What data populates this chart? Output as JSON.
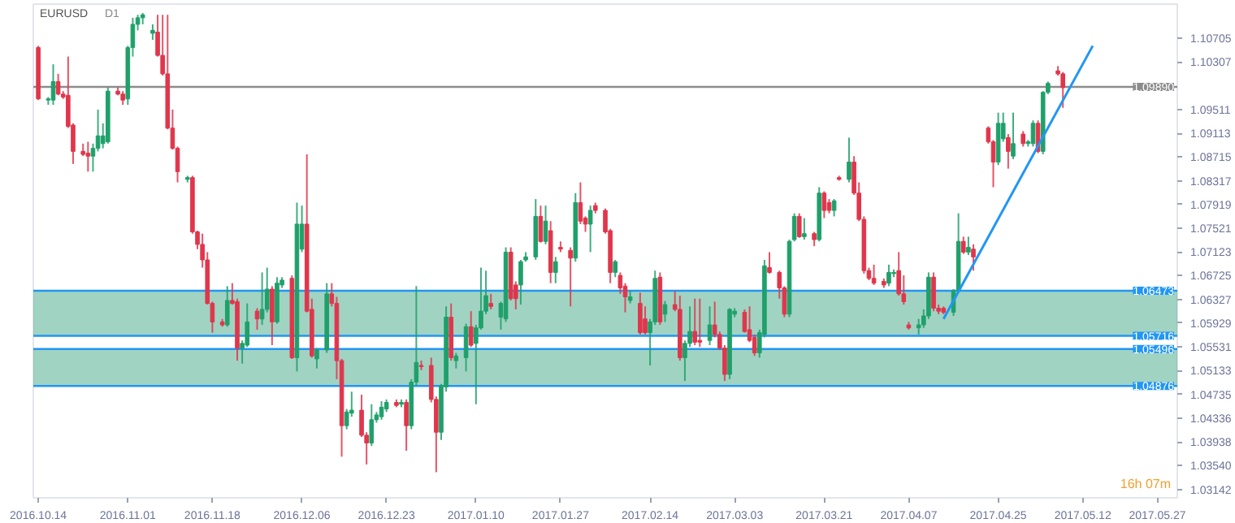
{
  "chart_data": {
    "type": "candlestick",
    "title": "EURUSD",
    "subtitle": "D1",
    "annotations": [
      "16h 07m"
    ],
    "x": [
      "2016-10-14",
      "2016-10-16",
      "2016-10-17",
      "2016-10-18",
      "2016-10-19",
      "2016-10-20",
      "2016-10-21",
      "2016-10-23",
      "2016-10-24",
      "2016-10-25",
      "2016-10-26",
      "2016-10-27",
      "2016-10-28",
      "2016-10-30",
      "2016-10-31",
      "2016-11-01",
      "2016-11-02",
      "2016-11-03",
      "2016-11-04",
      "2016-11-06",
      "2016-11-07",
      "2016-11-08",
      "2016-11-09",
      "2016-11-10",
      "2016-11-11",
      "2016-11-13",
      "2016-11-14",
      "2016-11-15",
      "2016-11-16",
      "2016-11-17",
      "2016-11-18",
      "2016-11-20",
      "2016-11-21",
      "2016-11-22",
      "2016-11-23",
      "2016-11-24",
      "2016-11-25",
      "2016-11-27",
      "2016-11-28",
      "2016-11-29",
      "2016-11-30",
      "2016-12-01",
      "2016-12-02",
      "2016-12-04",
      "2016-12-05",
      "2016-12-06",
      "2016-12-07",
      "2016-12-08",
      "2016-12-09",
      "2016-12-11",
      "2016-12-12",
      "2016-12-13",
      "2016-12-14",
      "2016-12-15",
      "2016-12-16",
      "2016-12-18",
      "2016-12-19",
      "2016-12-20",
      "2016-12-21",
      "2016-12-22",
      "2016-12-23",
      "2016-12-25",
      "2016-12-26",
      "2016-12-27",
      "2016-12-28",
      "2016-12-29",
      "2016-12-30",
      "2017-01-01",
      "2017-01-02",
      "2017-01-03",
      "2017-01-04",
      "2017-01-05",
      "2017-01-06",
      "2017-01-08",
      "2017-01-09",
      "2017-01-10",
      "2017-01-11",
      "2017-01-12",
      "2017-01-13",
      "2017-01-15",
      "2017-01-16",
      "2017-01-17",
      "2017-01-18",
      "2017-01-19",
      "2017-01-20",
      "2017-01-22",
      "2017-01-23",
      "2017-01-24",
      "2017-01-25",
      "2017-01-26",
      "2017-01-27",
      "2017-01-29",
      "2017-01-30",
      "2017-01-31",
      "2017-02-01",
      "2017-02-02",
      "2017-02-03",
      "2017-02-05",
      "2017-02-06",
      "2017-02-07",
      "2017-02-08",
      "2017-02-09",
      "2017-02-10",
      "2017-02-12",
      "2017-02-13",
      "2017-02-14",
      "2017-02-15",
      "2017-02-16",
      "2017-02-17",
      "2017-02-19",
      "2017-02-20",
      "2017-02-21",
      "2017-02-22",
      "2017-02-23",
      "2017-02-24",
      "2017-02-26",
      "2017-02-27",
      "2017-02-28",
      "2017-03-01",
      "2017-03-02",
      "2017-03-03",
      "2017-03-05",
      "2017-03-06",
      "2017-03-07",
      "2017-03-08",
      "2017-03-09",
      "2017-03-10",
      "2017-03-12",
      "2017-03-13",
      "2017-03-14",
      "2017-03-15",
      "2017-03-16",
      "2017-03-17",
      "2017-03-19",
      "2017-03-20",
      "2017-03-21",
      "2017-03-22",
      "2017-03-23",
      "2017-03-24",
      "2017-03-26",
      "2017-03-27",
      "2017-03-28",
      "2017-03-29",
      "2017-03-30",
      "2017-03-31",
      "2017-04-02",
      "2017-04-03",
      "2017-04-04",
      "2017-04-05",
      "2017-04-06",
      "2017-04-07",
      "2017-04-09",
      "2017-04-10",
      "2017-04-11",
      "2017-04-12",
      "2017-04-13",
      "2017-04-14",
      "2017-04-16",
      "2017-04-17",
      "2017-04-18",
      "2017-04-19",
      "2017-04-20",
      "2017-04-23",
      "2017-04-24",
      "2017-04-25",
      "2017-04-26",
      "2017-04-27",
      "2017-04-28",
      "2017-04-30",
      "2017-05-01",
      "2017-05-02",
      "2017-05-03",
      "2017-05-04",
      "2017-05-05",
      "2017-05-07",
      "2017-05-08"
    ],
    "ohlc": [
      [
        1.1055,
        1.1058,
        1.0967,
        1.0969
      ],
      [
        1.0967,
        1.0972,
        1.0959,
        1.0969
      ],
      [
        1.0967,
        1.1027,
        1.0959,
        1.0998
      ],
      [
        1.0998,
        1.1011,
        1.0975,
        1.0977
      ],
      [
        1.0977,
        1.0982,
        1.0969,
        1.0972
      ],
      [
        1.0975,
        1.104,
        1.092,
        1.0923
      ],
      [
        1.0925,
        1.0928,
        1.086,
        1.0881
      ],
      [
        1.0881,
        1.0894,
        1.0873,
        1.0876
      ],
      [
        1.0878,
        1.0897,
        1.0847,
        1.0873
      ],
      [
        1.0873,
        1.0894,
        1.0847,
        1.0886
      ],
      [
        1.0886,
        1.0951,
        1.0881,
        1.0907
      ],
      [
        1.0894,
        1.0928,
        1.0886,
        1.0907
      ],
      [
        1.0897,
        1.0988,
        1.0894,
        1.0982
      ],
      [
        1.0982,
        1.0988,
        1.0975,
        1.0977
      ],
      [
        1.0977,
        1.0982,
        1.0959,
        1.0967
      ],
      [
        1.0969,
        1.1058,
        1.0959,
        1.1055
      ],
      [
        1.1055,
        1.1105,
        1.104,
        1.1094
      ],
      [
        1.1094,
        1.111,
        1.1084,
        1.1105
      ],
      [
        1.1105,
        1.1113,
        1.1094,
        1.111
      ],
      [
        1.1079,
        1.1094,
        1.1068,
        1.1084
      ],
      [
        1.1081,
        1.111,
        1.104,
        1.1042
      ],
      [
        1.1042,
        1.111,
        1.1008,
        1.1011
      ],
      [
        1.1011,
        1.111,
        1.0918,
        1.092
      ],
      [
        1.092,
        1.0951,
        1.0884,
        1.0886
      ],
      [
        1.0886,
        1.0889,
        1.0829,
        1.0847
      ],
      [
        1.0834,
        1.084,
        1.0829,
        1.0837
      ],
      [
        1.0837,
        1.084,
        1.0743,
        1.0746
      ],
      [
        1.0746,
        1.0748,
        1.0717,
        1.0725
      ],
      [
        1.0725,
        1.0743,
        1.0686,
        1.0699
      ],
      [
        1.0699,
        1.0712,
        1.0624,
        1.0626
      ],
      [
        1.0626,
        1.0629,
        1.0577,
        1.0595
      ],
      [
        1.0595,
        1.06,
        1.0587,
        1.059
      ],
      [
        1.059,
        1.0655,
        1.0587,
        1.0631
      ],
      [
        1.0631,
        1.066,
        1.0624,
        1.0626
      ],
      [
        1.0629,
        1.0634,
        1.053,
        1.0551
      ],
      [
        1.0551,
        1.0564,
        1.0525,
        1.0559
      ],
      [
        1.0556,
        1.0626,
        1.0553,
        1.0595
      ],
      [
        1.0613,
        1.0618,
        1.0582,
        1.06
      ],
      [
        1.06,
        1.0678,
        1.059,
        1.0616
      ],
      [
        1.0616,
        1.0686,
        1.0611,
        1.065
      ],
      [
        1.065,
        1.0655,
        1.0556,
        1.0595
      ],
      [
        1.0595,
        1.067,
        1.0592,
        1.066
      ],
      [
        1.0657,
        1.067,
        1.0652,
        1.0665
      ],
      [
        1.0668,
        1.0673,
        1.0533,
        1.0535
      ],
      [
        1.0535,
        1.0795,
        1.0512,
        1.0759
      ],
      [
        1.0717,
        1.079,
        1.0712,
        1.0759
      ],
      [
        1.0759,
        1.0876,
        1.0611,
        1.0613
      ],
      [
        1.0616,
        1.0634,
        1.0535,
        1.0538
      ],
      [
        1.0533,
        1.0551,
        1.0517,
        1.0548
      ],
      [
        1.0548,
        1.066,
        1.0543,
        1.0642
      ],
      [
        1.0642,
        1.066,
        1.0621,
        1.0626
      ],
      [
        1.0626,
        1.0637,
        1.0499,
        1.053
      ],
      [
        1.053,
        1.0533,
        1.0369,
        1.0421
      ],
      [
        1.0421,
        1.0449,
        1.0415,
        1.0444
      ],
      [
        1.0442,
        1.0478,
        1.0436,
        1.0447
      ],
      [
        1.0447,
        1.0473,
        1.0402,
        1.0405
      ],
      [
        1.0405,
        1.041,
        1.0356,
        1.0392
      ],
      [
        1.0392,
        1.0457,
        1.0387,
        1.0431
      ],
      [
        1.0431,
        1.0444,
        1.0426,
        1.0439
      ],
      [
        1.0436,
        1.0462,
        1.0431,
        1.0452
      ],
      [
        1.0449,
        1.0465,
        1.0444,
        1.046
      ],
      [
        1.046,
        1.0465,
        1.0452,
        1.0455
      ],
      [
        1.0457,
        1.0465,
        1.0452,
        1.046
      ],
      [
        1.046,
        1.0465,
        1.0379,
        1.0421
      ],
      [
        1.0421,
        1.0499,
        1.0415,
        1.0494
      ],
      [
        1.0494,
        1.0655,
        1.0488,
        1.0527
      ],
      [
        1.0522,
        1.053,
        1.0514,
        1.052
      ],
      [
        1.0522,
        1.0535,
        1.046,
        1.0465
      ],
      [
        1.0465,
        1.047,
        1.0343,
        1.041
      ],
      [
        1.041,
        1.0491,
        1.0397,
        1.0488
      ],
      [
        1.0486,
        1.0621,
        1.0478,
        1.0603
      ],
      [
        1.0603,
        1.0626,
        1.053,
        1.0535
      ],
      [
        1.053,
        1.0543,
        1.0517,
        1.0538
      ],
      [
        1.0535,
        1.0592,
        1.0512,
        1.0587
      ],
      [
        1.0587,
        1.0613,
        1.0553,
        1.0556
      ],
      [
        1.0559,
        1.059,
        1.0457,
        1.0585
      ],
      [
        1.0585,
        1.0686,
        1.0582,
        1.0613
      ],
      [
        1.0613,
        1.0681,
        1.0608,
        1.0639
      ],
      [
        1.0626,
        1.0642,
        1.0616,
        1.0621
      ],
      [
        1.0603,
        1.0629,
        1.0582,
        1.0626
      ],
      [
        1.06,
        1.072,
        1.0595,
        1.0712
      ],
      [
        1.0712,
        1.072,
        1.0631,
        1.0634
      ],
      [
        1.0657,
        1.0663,
        1.0616,
        1.0634
      ],
      [
        1.0657,
        1.0699,
        1.0624,
        1.0696
      ],
      [
        1.0699,
        1.0712,
        1.0696,
        1.0704
      ],
      [
        1.0704,
        1.0801,
        1.0699,
        1.0772
      ],
      [
        1.0772,
        1.079,
        1.0728,
        1.073
      ],
      [
        1.073,
        1.079,
        1.0725,
        1.0764
      ],
      [
        1.0748,
        1.0764,
        1.066,
        1.0678
      ],
      [
        1.0678,
        1.0704,
        1.066,
        1.0696
      ],
      [
        1.072,
        1.073,
        1.0712,
        1.0717
      ],
      [
        1.0715,
        1.072,
        1.0621,
        1.0702
      ],
      [
        1.0702,
        1.0811,
        1.0696,
        1.0795
      ],
      [
        1.0795,
        1.0829,
        1.0759,
        1.0764
      ],
      [
        1.0769,
        1.0772,
        1.0746,
        1.0759
      ],
      [
        1.0759,
        1.079,
        1.0712,
        1.0782
      ],
      [
        1.079,
        1.0795,
        1.0777,
        1.0782
      ],
      [
        1.0782,
        1.0785,
        1.0743,
        1.0746
      ],
      [
        1.0748,
        1.0751,
        1.066,
        1.0678
      ],
      [
        1.0678,
        1.0699,
        1.067,
        1.0696
      ],
      [
        1.0673,
        1.0678,
        1.0642,
        1.0652
      ],
      [
        1.0655,
        1.066,
        1.0611,
        1.0637
      ],
      [
        1.0631,
        1.0647,
        1.0626,
        1.0637
      ],
      [
        1.0626,
        1.0644,
        1.0574,
        1.0577
      ],
      [
        1.06,
        1.0621,
        1.0574,
        1.0577
      ],
      [
        1.0577,
        1.06,
        1.0522,
        1.0595
      ],
      [
        1.0595,
        1.0681,
        1.059,
        1.0668
      ],
      [
        1.067,
        1.0678,
        1.059,
        1.0595
      ],
      [
        1.0608,
        1.063,
        1.0595,
        1.0624
      ],
      [
        1.0624,
        1.0647,
        1.0613,
        1.0616
      ],
      [
        1.0616,
        1.0639,
        1.053,
        1.0535
      ],
      [
        1.0535,
        1.0564,
        1.0496,
        1.0559
      ],
      [
        1.0559,
        1.0621,
        1.0553,
        1.0579
      ],
      [
        1.0579,
        1.0634,
        1.0556,
        1.0561
      ],
      [
        1.0564,
        1.0634,
        1.0553,
        1.0561
      ],
      [
        1.0564,
        1.0621,
        1.0556,
        1.059
      ],
      [
        1.059,
        1.0629,
        1.0569,
        1.0574
      ],
      [
        1.0574,
        1.0579,
        1.0548,
        1.0551
      ],
      [
        1.0551,
        1.0556,
        1.0496,
        1.0507
      ],
      [
        1.0507,
        1.0618,
        1.0499,
        1.0616
      ],
      [
        1.0608,
        1.0618,
        1.0603,
        1.0613
      ],
      [
        1.0611,
        1.0616,
        1.0577,
        1.0579
      ],
      [
        1.0582,
        1.0621,
        1.0561,
        1.0564
      ],
      [
        1.0569,
        1.0574,
        1.0538,
        1.0543
      ],
      [
        1.0543,
        1.0582,
        1.0535,
        1.0577
      ],
      [
        1.0574,
        1.0699,
        1.0569,
        1.0689
      ],
      [
        1.0686,
        1.0712,
        1.0676,
        1.0678
      ],
      [
        1.0678,
        1.0681,
        1.0634,
        1.0652
      ],
      [
        1.0652,
        1.0655,
        1.0603,
        1.0608
      ],
      [
        1.0608,
        1.0733,
        1.0603,
        1.073
      ],
      [
        1.0733,
        1.0777,
        1.073,
        1.0772
      ],
      [
        1.0772,
        1.0777,
        1.0736,
        1.0738
      ],
      [
        1.0738,
        1.0769,
        1.0733,
        1.0743
      ],
      [
        1.0743,
        1.0746,
        1.0722,
        1.0733
      ],
      [
        1.0733,
        1.0821,
        1.073,
        1.0811
      ],
      [
        1.0811,
        1.0814,
        1.0769,
        1.0782
      ],
      [
        1.0795,
        1.0801,
        1.0777,
        1.0782
      ],
      [
        1.0782,
        1.0801,
        1.0772,
        1.0798
      ],
      [
        1.0837,
        1.084,
        1.0832,
        1.0834
      ],
      [
        1.0834,
        1.0904,
        1.0829,
        1.0863
      ],
      [
        1.0863,
        1.0873,
        1.0808,
        1.0811
      ],
      [
        1.0811,
        1.0829,
        1.0764,
        1.0767
      ],
      [
        1.0767,
        1.0772,
        1.0676,
        1.0681
      ],
      [
        1.0681,
        1.0686,
        1.0665,
        1.0668
      ],
      [
        1.0668,
        1.0691,
        1.0657,
        1.066
      ],
      [
        1.0663,
        1.0668,
        1.0652,
        1.0657
      ],
      [
        1.066,
        1.0691,
        1.0655,
        1.0678
      ],
      [
        1.0676,
        1.0683,
        1.067,
        1.0678
      ],
      [
        1.0681,
        1.0712,
        1.0639,
        1.0642
      ],
      [
        1.0642,
        1.0673,
        1.0624,
        1.0629
      ],
      [
        1.059,
        1.0595,
        1.0582,
        1.0585
      ],
      [
        1.0585,
        1.06,
        1.0574,
        1.059
      ],
      [
        1.059,
        1.0616,
        1.0585,
        1.0605
      ],
      [
        1.0605,
        1.0678,
        1.06,
        1.067
      ],
      [
        1.067,
        1.0678,
        1.0613,
        1.0618
      ],
      [
        1.0618,
        1.0624,
        1.0608,
        1.0613
      ],
      [
        1.0618,
        1.0621,
        1.0608,
        1.0611
      ],
      [
        1.0611,
        1.065,
        1.0605,
        1.0647
      ],
      [
        1.0647,
        1.0777,
        1.0644,
        1.073
      ],
      [
        1.073,
        1.0738,
        1.0709,
        1.0712
      ],
      [
        1.0712,
        1.0738,
        1.0707,
        1.072
      ],
      [
        1.0717,
        1.0725,
        1.0681,
        1.0704
      ],
      [
        1.092,
        1.0923,
        1.0894,
        1.0897
      ],
      [
        1.0897,
        1.09,
        1.0821,
        1.0863
      ],
      [
        1.0863,
        1.0946,
        1.0858,
        1.0928
      ],
      [
        1.0902,
        1.0946,
        1.0897,
        1.0928
      ],
      [
        1.0904,
        1.091,
        1.0852,
        1.0881
      ],
      [
        1.0873,
        1.0946,
        1.0868,
        1.0894
      ],
      [
        1.091,
        1.0915,
        1.0889,
        1.0894
      ],
      [
        1.0894,
        1.09,
        1.0889,
        1.0897
      ],
      [
        1.0894,
        1.0933,
        1.0889,
        1.0928
      ],
      [
        1.0928,
        1.0933,
        1.0878,
        1.0881
      ],
      [
        1.0881,
        1.0982,
        1.0876,
        1.098
      ],
      [
        1.098,
        1.0998,
        1.0977,
        1.0995
      ],
      [
        1.1016,
        1.1024,
        1.1008,
        1.1011
      ],
      [
        1.1011,
        1.1014,
        1.0954,
        1.0988
      ]
    ],
    "series": [
      {
        "type": "line",
        "color": "#2196f3",
        "x": [
          "2017-04-14",
          "2017-05-14"
        ],
        "values": [
          1.06,
          1.1058
        ]
      }
    ],
    "xlim": [
      "2016-10-13",
      "2017-05-31"
    ],
    "ylim": [
      1.03,
      1.1128
    ],
    "xticks": [
      {
        "value": "2016-10-14",
        "label": "2016.10.14"
      },
      {
        "value": "2016-11-01",
        "label": "2016.11.01"
      },
      {
        "value": "2016-11-18",
        "label": "2016.11.18"
      },
      {
        "value": "2016-12-06",
        "label": "2016.12.06"
      },
      {
        "value": "2016-12-23",
        "label": "2016.12.23"
      },
      {
        "value": "2017-01-10",
        "label": "2017.01.10"
      },
      {
        "value": "2017-01-27",
        "label": "2017.01.27"
      },
      {
        "value": "2017-02-14",
        "label": "2017.02.14"
      },
      {
        "value": "2017-03-03",
        "label": "2017.03.03"
      },
      {
        "value": "2017-03-21",
        "label": "2017.03.21"
      },
      {
        "value": "2017-04-07",
        "label": "2017.04.07"
      },
      {
        "value": "2017-04-25",
        "label": "2017.04.25"
      },
      {
        "value": "2017-05-12",
        "label": "2017.05.12"
      },
      {
        "value": "2017-05-27",
        "label": "2017.05.27"
      }
    ],
    "yticks": [
      1.10705,
      1.10307,
      1.09511,
      1.09113,
      1.08715,
      1.08317,
      1.07919,
      1.07521,
      1.07123,
      1.06725,
      1.06327,
      1.05929,
      1.05531,
      1.05133,
      1.04735,
      1.04336,
      1.03938,
      {
        "value": 1.0354,
        "label": "1.03540"
      },
      1.03142
    ],
    "ref_lines": [
      {
        "axis": "y",
        "value": 1.0989,
        "label": "1.09890",
        "color": "#8c8c8c"
      },
      {
        "axis": "y",
        "value": 1.06473,
        "label": "1.06473",
        "color": "#2196f3"
      },
      {
        "axis": "y",
        "value": 1.05716,
        "label": "1.05716",
        "color": "#2196f3"
      },
      {
        "axis": "y",
        "value": 1.05496,
        "label": "1.05496",
        "color": "#2196f3"
      },
      {
        "axis": "y",
        "value": 1.04876,
        "label": "1.04876",
        "color": "#2196f3"
      }
    ],
    "bands": [
      {
        "axis": "y",
        "from": 1.05716,
        "to": 1.06473,
        "color": "#2e9e78"
      },
      {
        "axis": "y",
        "from": 1.04876,
        "to": 1.05496,
        "color": "#2e9e78"
      }
    ],
    "grid": false
  }
}
